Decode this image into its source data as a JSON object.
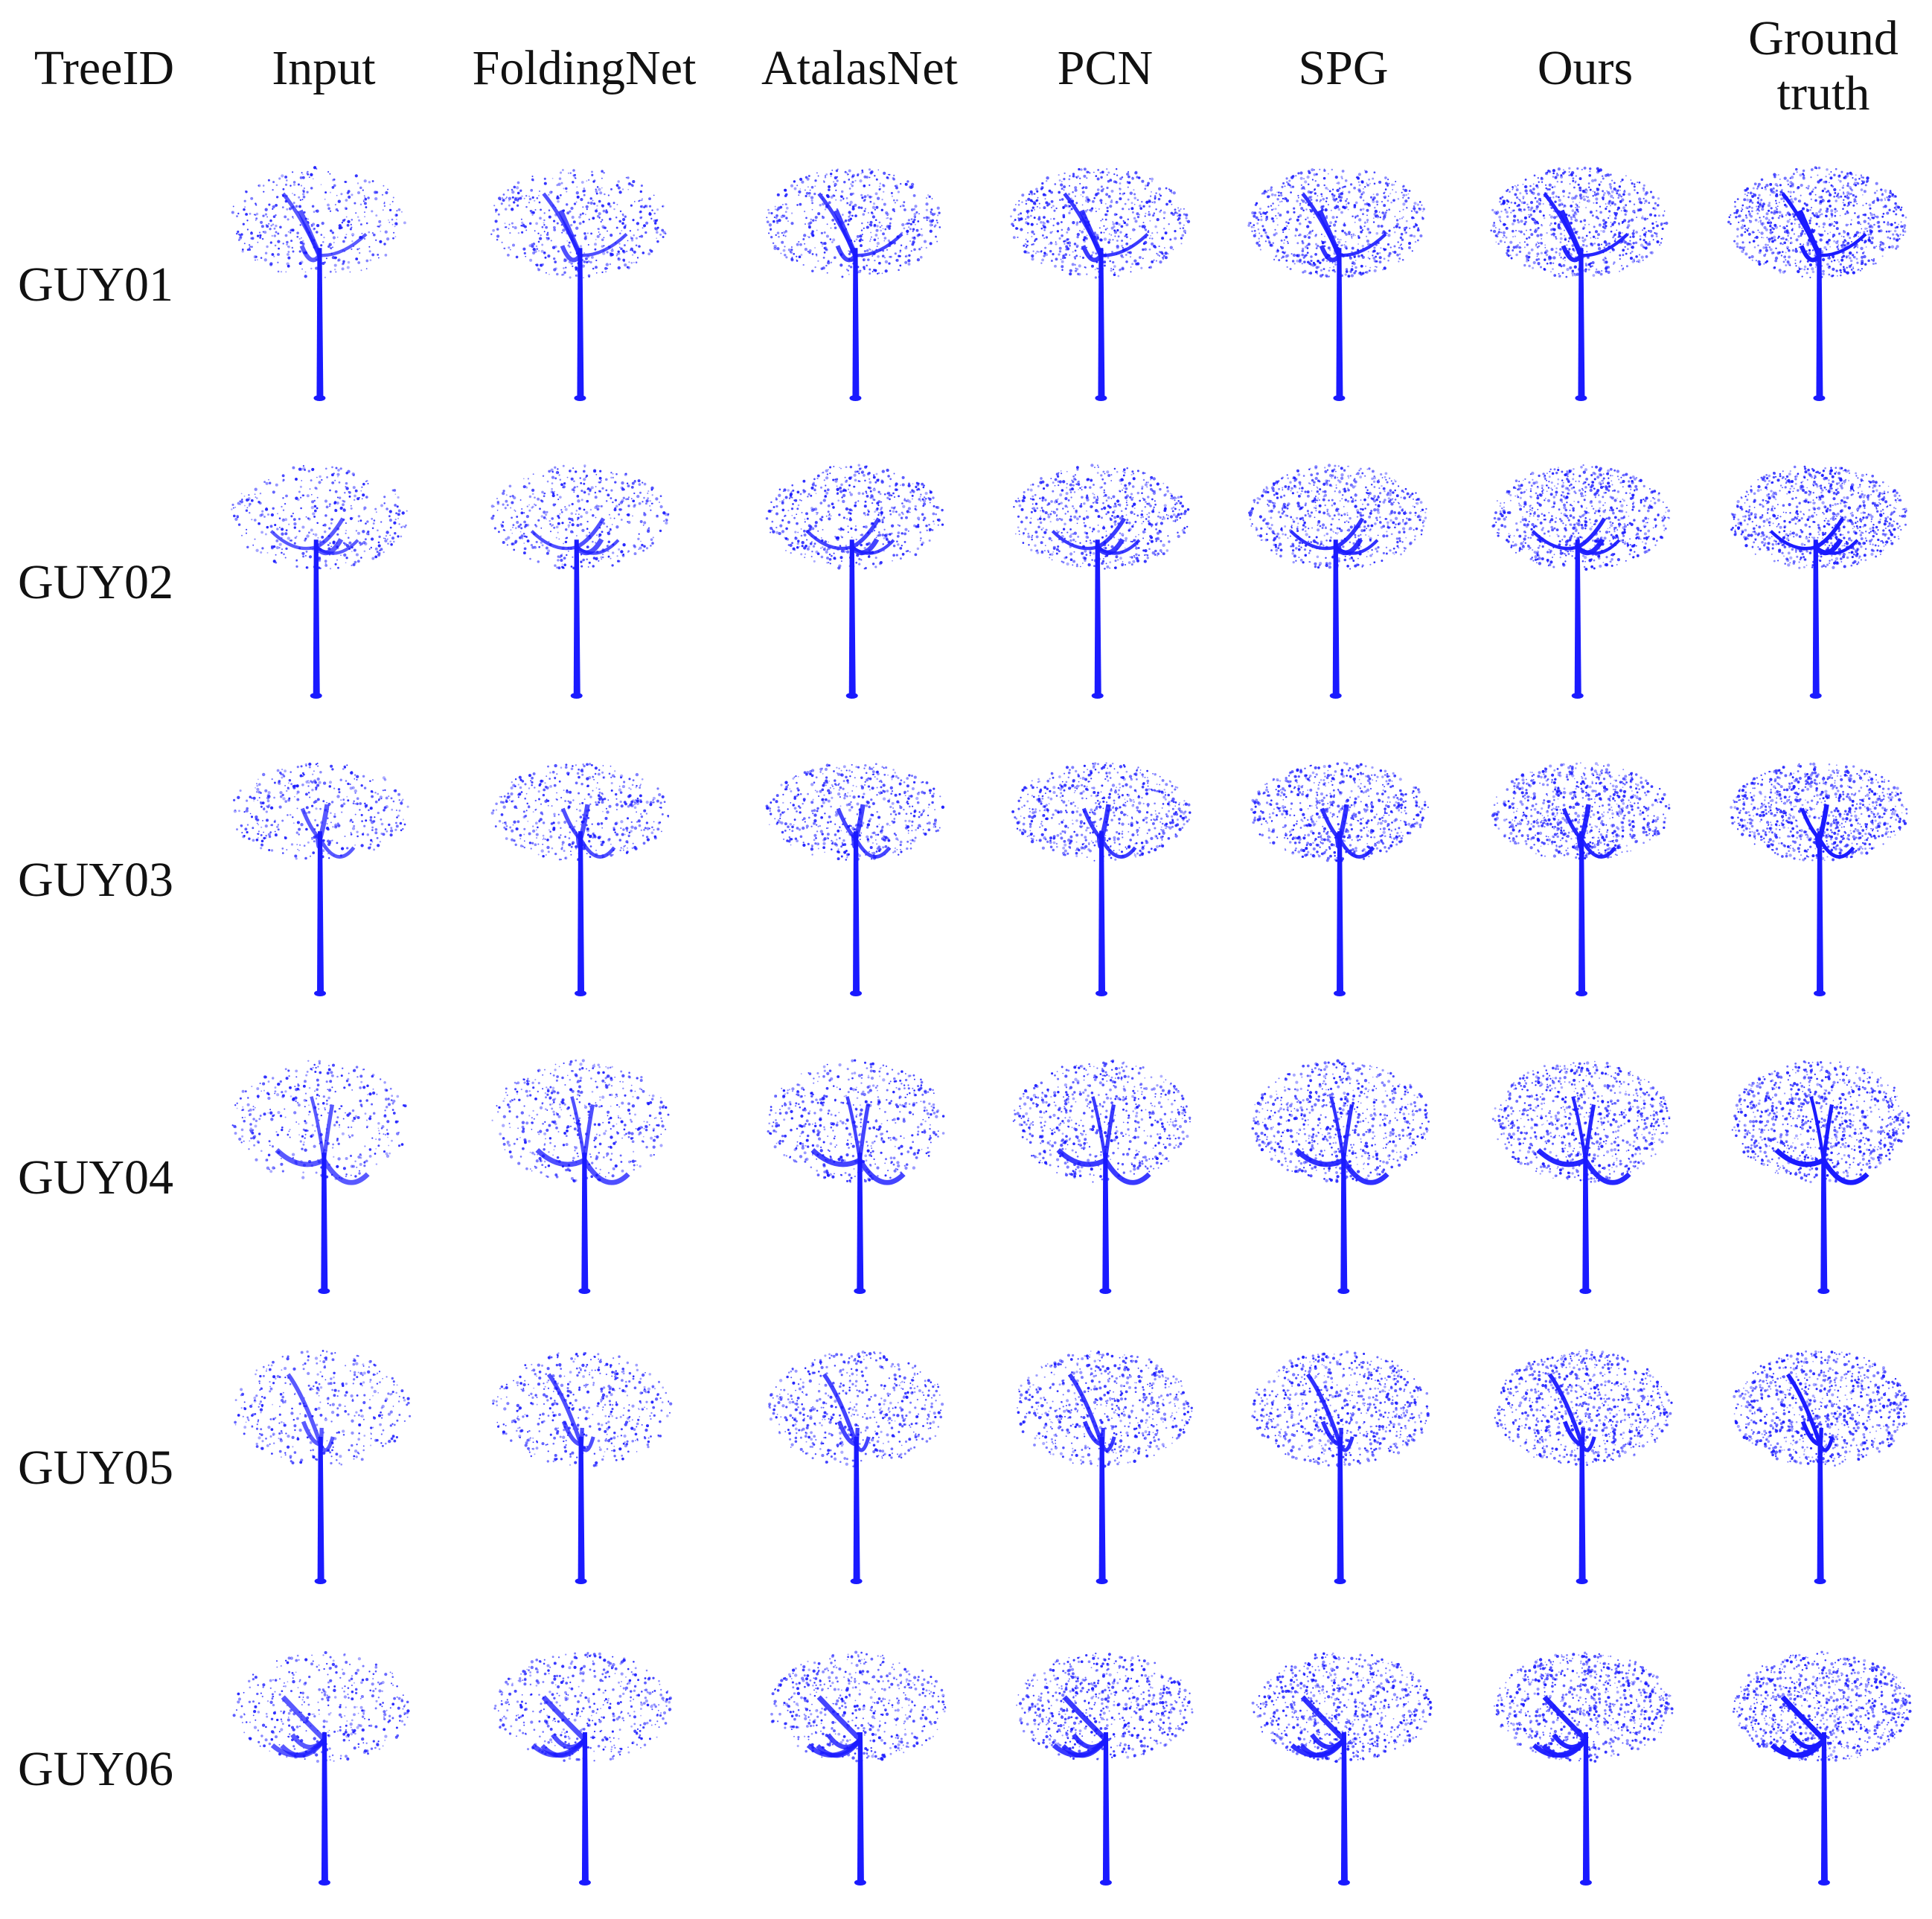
{
  "figure": {
    "header_label": "TreeID",
    "columns": [
      {
        "label": "Input"
      },
      {
        "label": "FoldingNet"
      },
      {
        "label": "AtalasNet"
      },
      {
        "label": "PCN"
      },
      {
        "label": "SPG"
      },
      {
        "label": "Ours"
      },
      {
        "label": "Ground truth"
      }
    ],
    "rows": [
      {
        "id": "GUY01"
      },
      {
        "id": "GUY02"
      },
      {
        "id": "GUY03"
      },
      {
        "id": "GUY04"
      },
      {
        "id": "GUY05"
      },
      {
        "id": "GUY06"
      }
    ],
    "point_color": "#1a1aff"
  }
}
